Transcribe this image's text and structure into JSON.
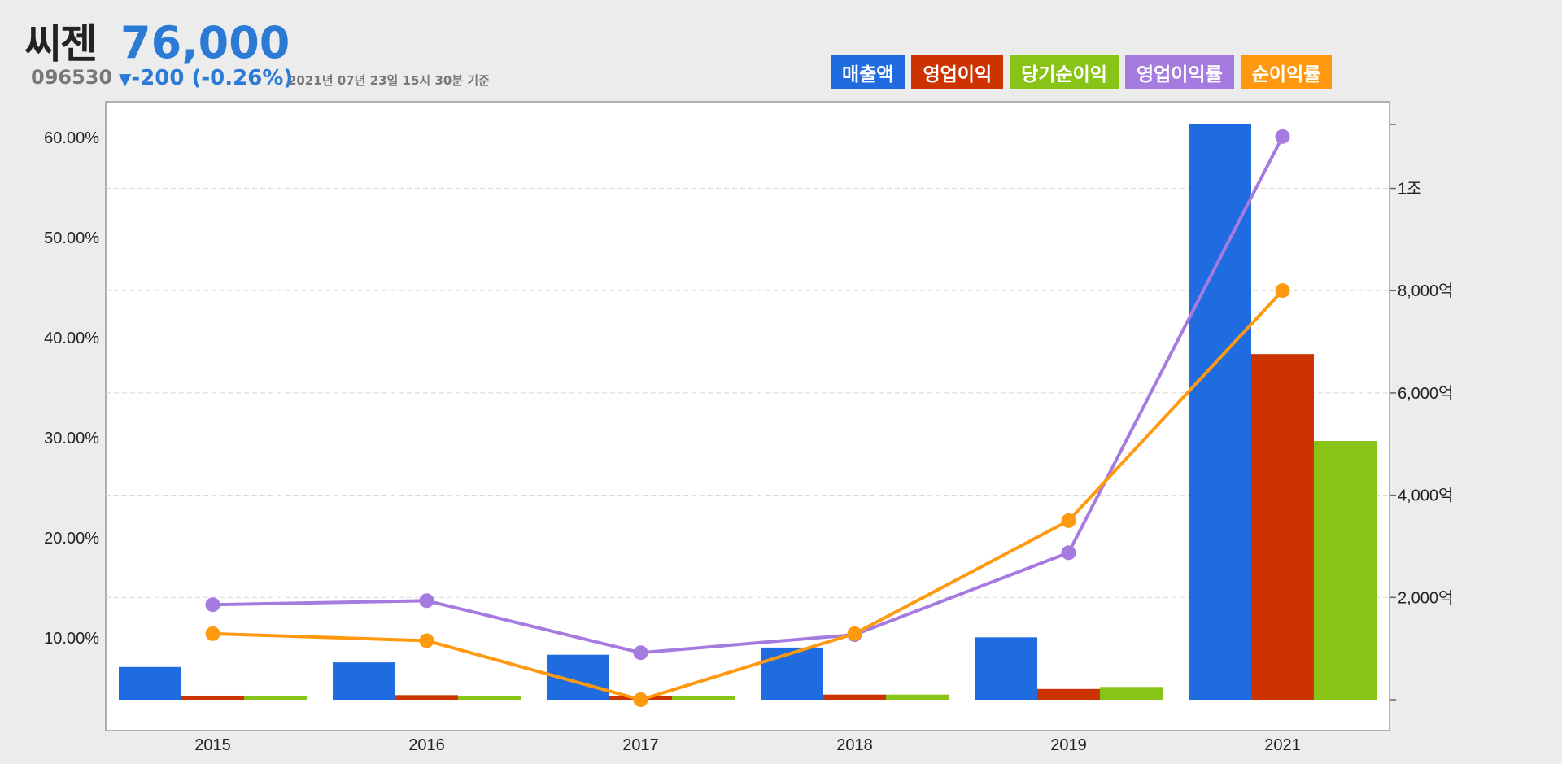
{
  "stock": {
    "name": "씨젠",
    "price": "76,000",
    "code": "096530",
    "change_arrow": "▼",
    "change": "-200 (-0.26%)",
    "timestamp": "2021년 07년 23일 15시 30분 기준"
  },
  "colors": {
    "revenue": "#1f6ce0",
    "operating_income": "#cc3300",
    "net_income": "#88c417",
    "operating_margin": "#a67be0",
    "net_margin": "#ff9910",
    "plot_bg": "#ffffff",
    "page_bg": "#ececec"
  },
  "legend": [
    {
      "label": "매출액",
      "color": "#1f6ce0"
    },
    {
      "label": "영업이익",
      "color": "#cc3300"
    },
    {
      "label": "당기순이익",
      "color": "#88c417"
    },
    {
      "label": "영업이익률",
      "color": "#a67be0"
    },
    {
      "label": "순이익률",
      "color": "#ff9910"
    }
  ],
  "chart_data": {
    "type": "bar",
    "categories": [
      "2015",
      "2016",
      "2017",
      "2018",
      "2019",
      "2021"
    ],
    "bar_axis": "right",
    "line_axis": "left",
    "series": [
      {
        "name": "매출액",
        "kind": "bar",
        "axis": "right",
        "values": [
          640,
          730,
          880,
          1020,
          1220,
          11250
        ]
      },
      {
        "name": "영업이익",
        "kind": "bar",
        "axis": "right",
        "values": [
          80,
          90,
          60,
          100,
          210,
          6760
        ]
      },
      {
        "name": "당기순이익",
        "kind": "bar",
        "axis": "right",
        "values": [
          60,
          70,
          30,
          100,
          250,
          5060
        ]
      },
      {
        "name": "영업이익률",
        "kind": "line",
        "axis": "left",
        "values": [
          13.3,
          13.7,
          8.5,
          10.3,
          18.5,
          60.1
        ]
      },
      {
        "name": "순이익률",
        "kind": "line",
        "axis": "left",
        "values": [
          10.4,
          9.7,
          3.8,
          10.4,
          21.7,
          44.7
        ]
      }
    ],
    "left_axis": {
      "min": 3.8,
      "max": 61.3,
      "ticks": [
        10,
        20,
        30,
        40,
        50,
        60
      ],
      "tick_labels": [
        "10.00%",
        "20.00%",
        "30.00%",
        "40.00%",
        "50.00%",
        "60.00%"
      ]
    },
    "right_axis": {
      "min": 0,
      "max": 11250,
      "ticks": [
        0,
        2000,
        4000,
        6000,
        8000,
        10000,
        11250
      ],
      "tick_labels": [
        "",
        "2,000억",
        "4,000억",
        "6,000억",
        "8,000억",
        "1조",
        ""
      ],
      "unit": "억원"
    },
    "grid": "horizontal dashed",
    "legend_position": "top-right"
  }
}
